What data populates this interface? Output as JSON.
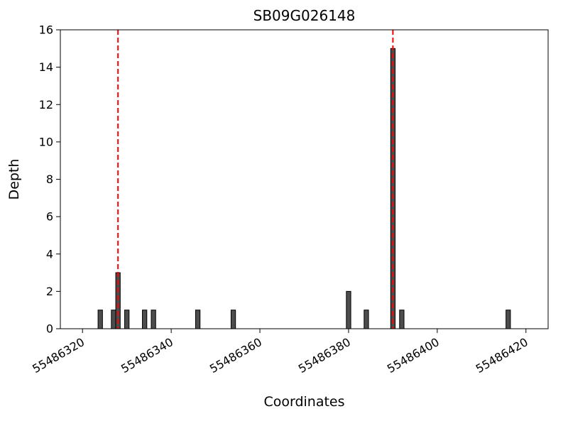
{
  "chart_data": {
    "type": "bar",
    "title": "SB09G026148",
    "xlabel": "Coordinates",
    "ylabel": "Depth",
    "xlim": [
      55486315,
      55486425
    ],
    "ylim": [
      0,
      16
    ],
    "xticks": [
      55486320,
      55486340,
      55486360,
      55486380,
      55486400,
      55486420
    ],
    "yticks": [
      0,
      2,
      4,
      6,
      8,
      10,
      12,
      14,
      16
    ],
    "grid": false,
    "legend": "none",
    "bar_width": 1,
    "bar_color": "#4d4d4d",
    "bar_edge_color": "#000000",
    "vline_color": "#ff0000",
    "vline_style": "dashed",
    "bars": [
      {
        "x": 55486324,
        "depth": 1
      },
      {
        "x": 55486327,
        "depth": 1
      },
      {
        "x": 55486328,
        "depth": 3
      },
      {
        "x": 55486330,
        "depth": 1
      },
      {
        "x": 55486334,
        "depth": 1
      },
      {
        "x": 55486336,
        "depth": 1
      },
      {
        "x": 55486346,
        "depth": 1
      },
      {
        "x": 55486354,
        "depth": 1
      },
      {
        "x": 55486380,
        "depth": 2
      },
      {
        "x": 55486384,
        "depth": 1
      },
      {
        "x": 55486390,
        "depth": 15
      },
      {
        "x": 55486392,
        "depth": 1
      },
      {
        "x": 55486416,
        "depth": 1
      }
    ],
    "vlines": [
      {
        "x": 55486328
      },
      {
        "x": 55486390
      }
    ]
  }
}
